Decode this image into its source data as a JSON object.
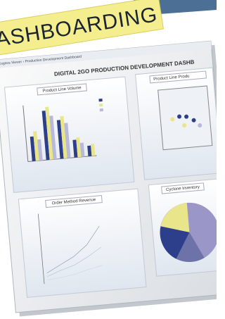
{
  "banner": {
    "title": "ASHBOARDING"
  },
  "dashboard": {
    "breadcrumb": "Cognos Viewer › Production Development Dashboard",
    "title": "DIGITAL 2GO PRODUCTION DEVELOPMENT DASHB",
    "panels": [
      {
        "title": "Product Line Volume"
      },
      {
        "title": "Product Line Produ"
      },
      {
        "title": "Order Method Revenue"
      },
      {
        "title": "Cyclone Inventory"
      }
    ]
  }
}
